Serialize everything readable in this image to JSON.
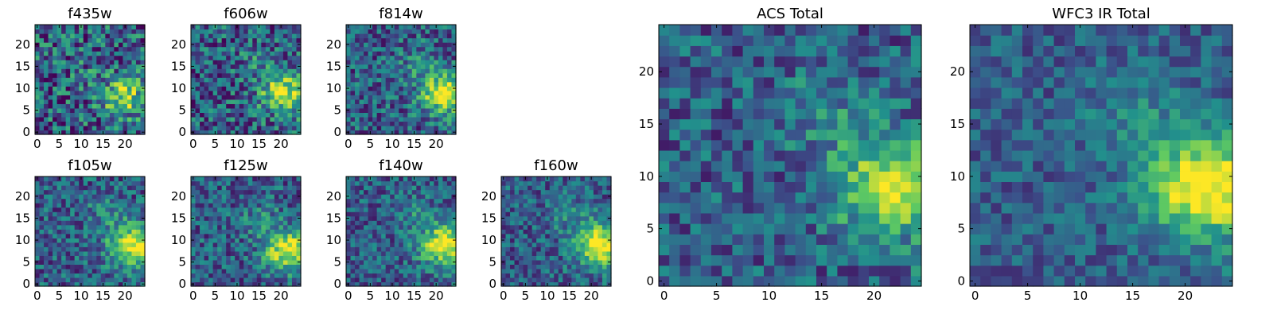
{
  "chart_data": {
    "type": "heatmap",
    "colormap": "viridis",
    "colormap_stops": [
      "#440154",
      "#3b528b",
      "#21918c",
      "#5ec962",
      "#fde725"
    ],
    "panels": [
      {
        "id": "f435w",
        "title": "f435w",
        "grid_size": 25,
        "ticks_x": [
          "0",
          "5",
          "10",
          "15",
          "20"
        ],
        "ticks_y": [
          "0",
          "5",
          "10",
          "15",
          "20"
        ],
        "peak": [
          20,
          8
        ],
        "signal": 0.5,
        "noise": 0.34,
        "seed": 11
      },
      {
        "id": "f606w",
        "title": "f606w",
        "grid_size": 25,
        "ticks_x": [
          "0",
          "5",
          "10",
          "15",
          "20"
        ],
        "ticks_y": [
          "0",
          "5",
          "10",
          "15",
          "20"
        ],
        "peak": [
          21,
          9
        ],
        "signal": 0.62,
        "noise": 0.3,
        "seed": 23
      },
      {
        "id": "f814w",
        "title": "f814w",
        "grid_size": 25,
        "ticks_x": [
          "0",
          "5",
          "10",
          "15",
          "20"
        ],
        "ticks_y": [
          "0",
          "5",
          "10",
          "15",
          "20"
        ],
        "peak": [
          22,
          9
        ],
        "signal": 0.72,
        "noise": 0.26,
        "seed": 37
      },
      {
        "id": "f105w",
        "title": "f105w",
        "grid_size": 25,
        "ticks_x": [
          "0",
          "5",
          "10",
          "15",
          "20"
        ],
        "ticks_y": [
          "0",
          "5",
          "10",
          "15",
          "20"
        ],
        "peak": [
          22,
          9
        ],
        "signal": 0.72,
        "noise": 0.24,
        "seed": 41
      },
      {
        "id": "f125w",
        "title": "f125w",
        "grid_size": 25,
        "ticks_x": [
          "0",
          "5",
          "10",
          "15",
          "20"
        ],
        "ticks_y": [
          "0",
          "5",
          "10",
          "15",
          "20"
        ],
        "peak": [
          22,
          8
        ],
        "signal": 0.72,
        "noise": 0.24,
        "seed": 53
      },
      {
        "id": "f140w",
        "title": "f140w",
        "grid_size": 25,
        "ticks_x": [
          "0",
          "5",
          "10",
          "15",
          "20"
        ],
        "ticks_y": [
          "0",
          "5",
          "10",
          "15",
          "20"
        ],
        "peak": [
          22,
          9
        ],
        "signal": 0.74,
        "noise": 0.22,
        "seed": 67
      },
      {
        "id": "f160w",
        "title": "f160w",
        "grid_size": 25,
        "ticks_x": [
          "0",
          "5",
          "10",
          "15",
          "20"
        ],
        "ticks_y": [
          "0",
          "5",
          "10",
          "15",
          "20"
        ],
        "peak": [
          22,
          9
        ],
        "signal": 0.76,
        "noise": 0.22,
        "seed": 79
      },
      {
        "id": "acs-total",
        "title": "ACS Total",
        "grid_size": 25,
        "ticks_x": [
          "0",
          "5",
          "10",
          "15",
          "20"
        ],
        "ticks_y": [
          "0",
          "5",
          "10",
          "15",
          "20"
        ],
        "peak": [
          22,
          9
        ],
        "signal": 0.7,
        "noise": 0.22,
        "seed": 83
      },
      {
        "id": "wfc3-ir-total",
        "title": "WFC3 IR Total",
        "grid_size": 25,
        "ticks_x": [
          "0",
          "5",
          "10",
          "15",
          "20"
        ],
        "ticks_y": [
          "0",
          "5",
          "10",
          "15",
          "20"
        ],
        "peak": [
          22,
          9
        ],
        "signal": 0.8,
        "noise": 0.16,
        "seed": 97
      }
    ]
  }
}
